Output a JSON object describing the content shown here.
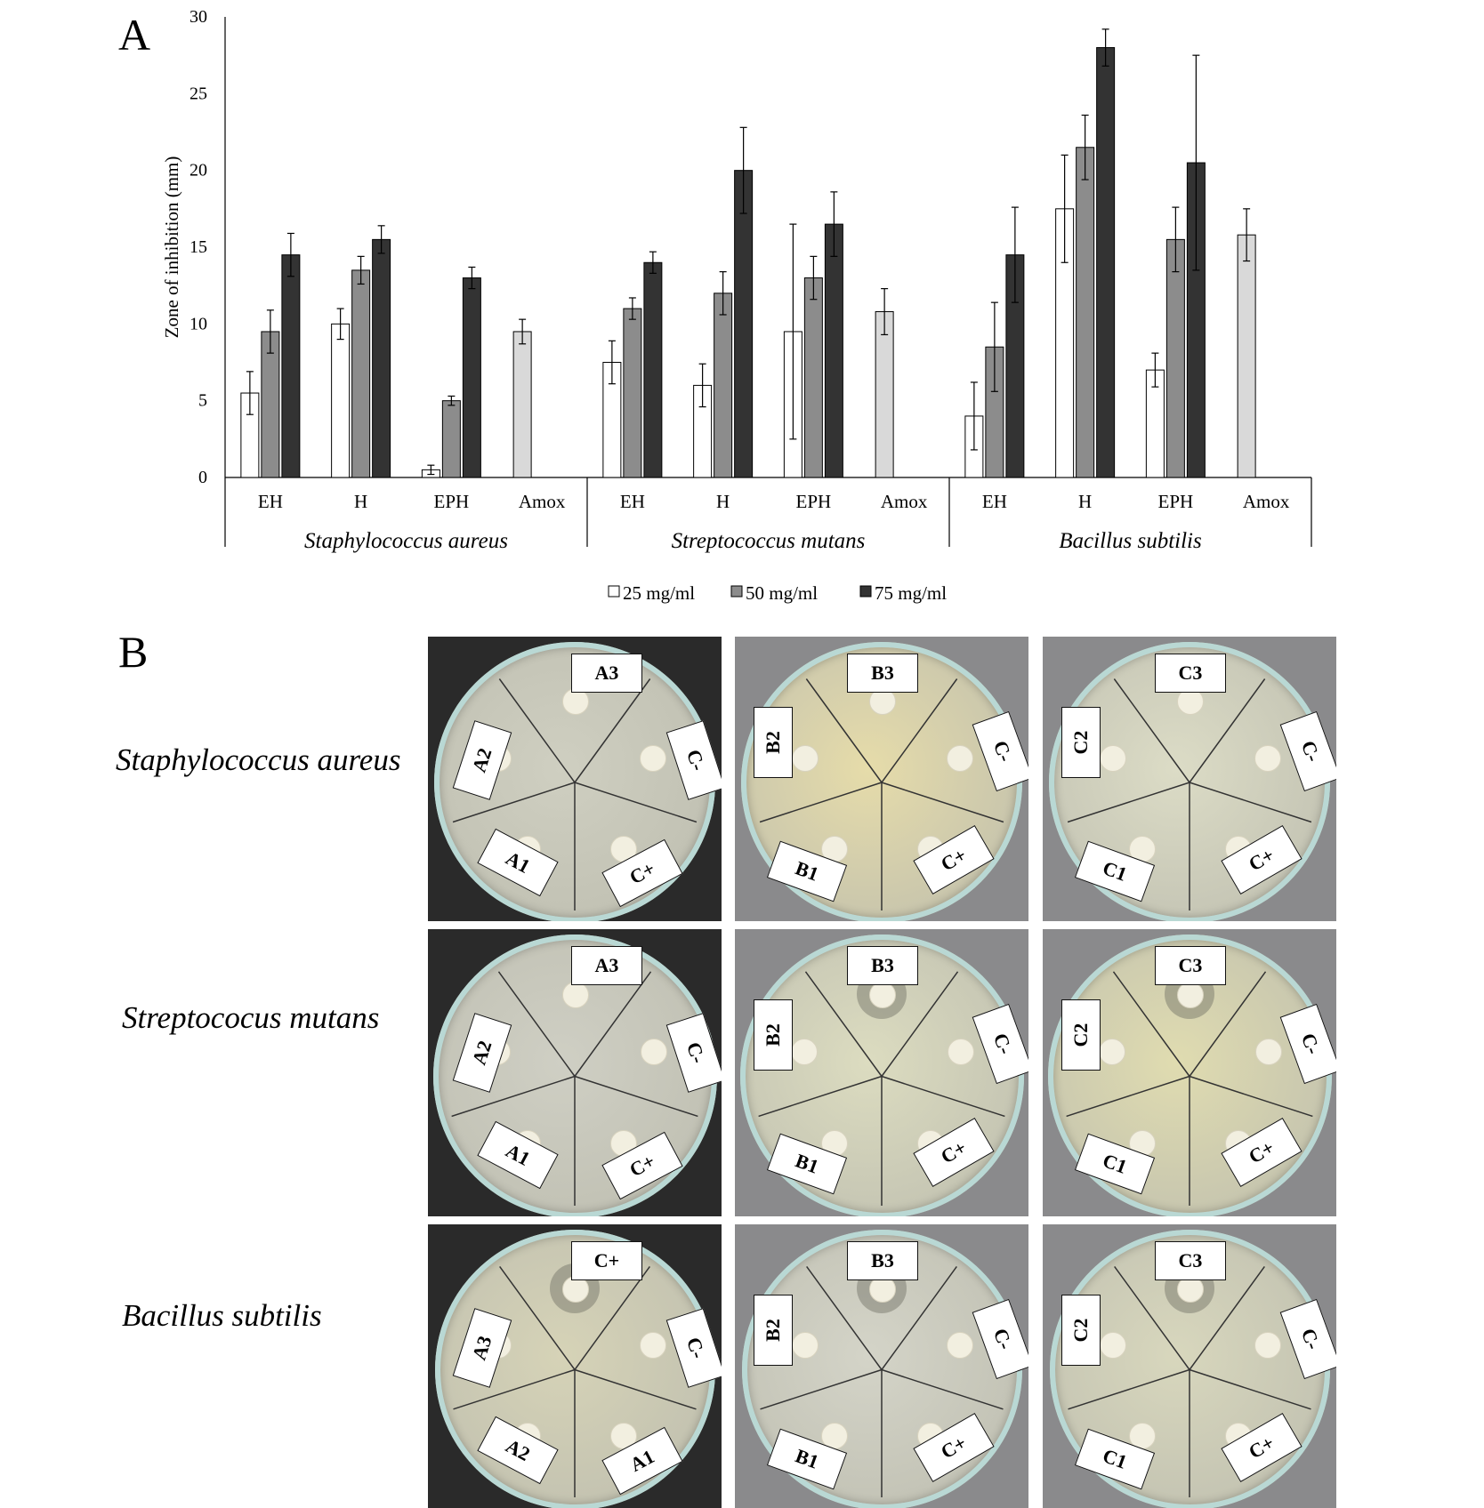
{
  "panelA": {
    "letter": "A",
    "chart_data": {
      "type": "bar",
      "ylabel": "Zone of inhibition (mm)",
      "ylim": [
        0,
        30
      ],
      "yticks": [
        0,
        5,
        10,
        15,
        20,
        25,
        30
      ],
      "groups": [
        "Staphylococcus aureus",
        "Streptococcus mutans",
        "Bacillus subtilis"
      ],
      "categories": [
        "EH",
        "H",
        "EPH",
        "Amox"
      ],
      "series": [
        {
          "name": "25 mg/ml",
          "color": "#ffffff"
        },
        {
          "name": "50 mg/ml",
          "color": "#8c8c8c"
        },
        {
          "name": "75 mg/ml",
          "color": "#333333"
        }
      ],
      "amox_color": "#d9d9d9",
      "data": [
        {
          "group": "Staphylococcus aureus",
          "bars": [
            {
              "category": "EH",
              "values": [
                5.5,
                9.5,
                14.5
              ],
              "errors": [
                1.4,
                1.4,
                1.4
              ]
            },
            {
              "category": "H",
              "values": [
                10,
                13.5,
                15.5
              ],
              "errors": [
                1.0,
                0.9,
                0.9
              ]
            },
            {
              "category": "EPH",
              "values": [
                0.5,
                5.0,
                13.0
              ],
              "errors": [
                0.3,
                0.3,
                0.7
              ]
            },
            {
              "category": "Amox",
              "values": [
                9.5
              ],
              "errors": [
                0.8
              ]
            }
          ]
        },
        {
          "group": "Streptococcus mutans",
          "bars": [
            {
              "category": "EH",
              "values": [
                7.5,
                11.0,
                14.0
              ],
              "errors": [
                1.4,
                0.7,
                0.7
              ]
            },
            {
              "category": "H",
              "values": [
                6.0,
                12.0,
                20.0
              ],
              "errors": [
                1.4,
                1.4,
                2.8
              ]
            },
            {
              "category": "EPH",
              "values": [
                9.5,
                13.0,
                16.5
              ],
              "errors": [
                7.0,
                1.4,
                2.1
              ]
            },
            {
              "category": "Amox",
              "values": [
                10.8
              ],
              "errors": [
                1.5
              ]
            }
          ]
        },
        {
          "group": "Bacillus subtilis",
          "bars": [
            {
              "category": "EH",
              "values": [
                4.0,
                8.5,
                14.5
              ],
              "errors": [
                2.2,
                2.9,
                3.1
              ]
            },
            {
              "category": "H",
              "values": [
                17.5,
                21.5,
                28.0
              ],
              "errors": [
                3.5,
                2.1,
                1.2
              ]
            },
            {
              "category": "EPH",
              "values": [
                7.0,
                15.5,
                20.5
              ],
              "errors": [
                1.1,
                2.1,
                7.0
              ]
            },
            {
              "category": "Amox",
              "values": [
                15.8
              ],
              "errors": [
                1.7
              ]
            }
          ]
        }
      ],
      "legend_position": "bottom"
    }
  },
  "panelB": {
    "letter": "B",
    "rows": [
      {
        "label": "Staphylococcus aureus",
        "plates": [
          {
            "labels": [
              "A3",
              "A2",
              "A1",
              "C+",
              "C-"
            ]
          },
          {
            "labels": [
              "B3",
              "B2",
              "B1",
              "C+",
              "C-"
            ]
          },
          {
            "labels": [
              "C3",
              "C2",
              "C1",
              "C+",
              "C-"
            ]
          }
        ]
      },
      {
        "label": "Streptococus mutans",
        "plates": [
          {
            "labels": [
              "A3",
              "A2",
              "A1",
              "C+",
              "C-"
            ]
          },
          {
            "labels": [
              "B3",
              "B2",
              "B1",
              "C+",
              "C-"
            ]
          },
          {
            "labels": [
              "C3",
              "C2",
              "C1",
              "C+",
              "C-"
            ]
          }
        ]
      },
      {
        "label": "Bacillus subtilis",
        "plates": [
          {
            "labels": [
              "C+",
              "A3",
              "A2",
              "A1",
              "C-"
            ]
          },
          {
            "labels": [
              "B3",
              "B2",
              "B1",
              "C+",
              "C-"
            ]
          },
          {
            "labels": [
              "C3",
              "C2",
              "C1",
              "C+",
              "C-"
            ]
          }
        ]
      }
    ]
  }
}
